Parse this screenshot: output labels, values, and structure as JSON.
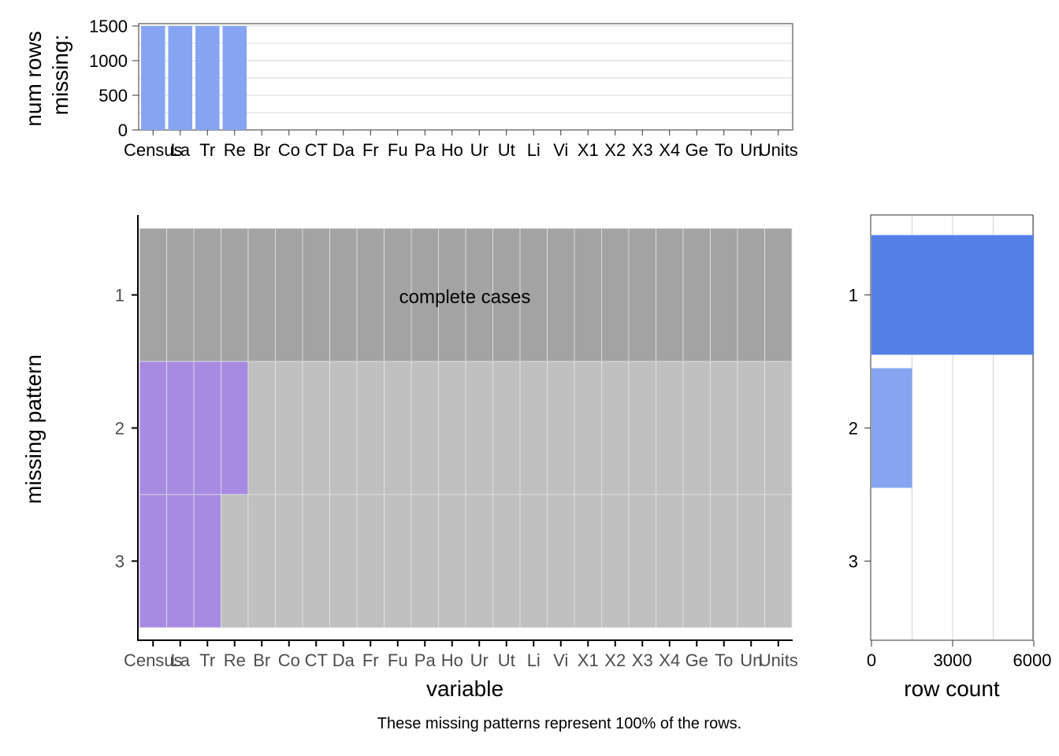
{
  "chart_data": [
    {
      "type": "bar",
      "panel": "missing-count",
      "ylabel_lines": [
        "num rows",
        "missing:"
      ],
      "ylim": [
        0,
        1500
      ],
      "yticks": [
        0,
        500,
        1000,
        1500
      ],
      "ytick_labels": [
        "0",
        "500",
        "1000",
        "1500"
      ],
      "grid": true,
      "x_tick_labels": [
        "Census",
        "La",
        "Tr",
        "Re",
        "Br",
        "Co",
        "CT",
        "Da",
        "Fr",
        "Fu",
        "Pa",
        "Ho",
        "Ur",
        "Ut",
        "Li",
        "Vi",
        "X1",
        "X2",
        "X3",
        "X4",
        "Ge",
        "To",
        "Un",
        "Units"
      ],
      "values": [
        1529,
        1529,
        1529,
        1529,
        0,
        0,
        0,
        0,
        0,
        0,
        0,
        0,
        0,
        0,
        0,
        0,
        0,
        0,
        0,
        0,
        0,
        0,
        0,
        0
      ],
      "bar_color": "#86a4f0"
    },
    {
      "type": "heatmap",
      "panel": "missing-pattern",
      "xlabel": "variable",
      "ylabel": "missing pattern",
      "pattern_labels": [
        "1",
        "2",
        "3"
      ],
      "x_tick_labels": [
        "Census",
        "La",
        "Tr",
        "Re",
        "Br",
        "Co",
        "CT",
        "Da",
        "Fr",
        "Fu",
        "Pa",
        "Ho",
        "Ur",
        "Ut",
        "Li",
        "Vi",
        "X1",
        "X2",
        "X3",
        "X4",
        "Ge",
        "To",
        "Un",
        "Units"
      ],
      "patterns": [
        {
          "label": "1",
          "missing_columns": 0,
          "complete": true
        },
        {
          "label": "2",
          "missing_columns": 4,
          "complete": false
        },
        {
          "label": "3",
          "missing_columns": 3,
          "complete": false
        }
      ],
      "annotation": "complete cases",
      "colors": {
        "complete": "#a3a3a3",
        "present": "#c0c0c0",
        "missing": "#a78be2"
      }
    },
    {
      "type": "bar",
      "panel": "row-count",
      "orientation": "horizontal",
      "xlabel": "row count",
      "xlim": [
        0,
        6000
      ],
      "xticks": [
        0,
        3000,
        6000
      ],
      "xtick_labels": [
        "0",
        "3000",
        "6000"
      ],
      "categories": [
        "1",
        "2",
        "3"
      ],
      "values": [
        6000,
        1500,
        0
      ],
      "colors": [
        "#5580e6",
        "#86a4f0",
        "#86a4f0"
      ],
      "grid": true
    }
  ],
  "caption": "These missing patterns represent 100% of the rows."
}
